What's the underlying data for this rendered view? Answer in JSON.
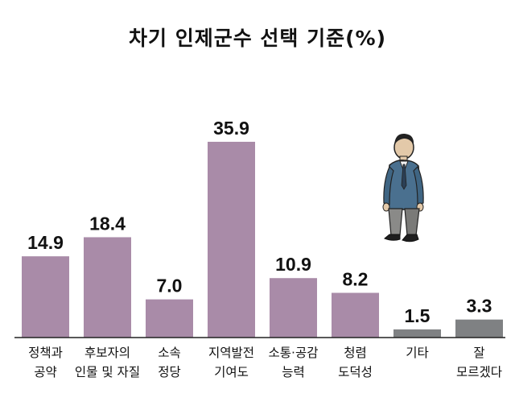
{
  "chart_data": {
    "type": "bar",
    "title": "차기 인제군수 선택 기준(%)",
    "categories": [
      [
        "정책과",
        "공약"
      ],
      [
        "후보자의",
        "인물 및 자질"
      ],
      [
        "소속",
        "정당"
      ],
      [
        "지역발전",
        "기여도"
      ],
      [
        "소통·공감",
        "능력"
      ],
      [
        "청렴",
        "도덕성"
      ],
      [
        "기타"
      ],
      [
        "잘",
        "모르겠다"
      ]
    ],
    "values": [
      14.9,
      18.4,
      7.0,
      35.9,
      10.9,
      8.2,
      1.5,
      3.3
    ],
    "value_labels": [
      "14.9",
      "18.4",
      "7.0",
      "35.9",
      "10.9",
      "8.2",
      "1.5",
      "3.3"
    ],
    "bar_colors": [
      "#a98ba8",
      "#a98ba8",
      "#a98ba8",
      "#a98ba8",
      "#a98ba8",
      "#a98ba8",
      "#7f8183",
      "#7f8183"
    ],
    "xlabel": "",
    "ylabel": "",
    "ylim": [
      0,
      35.9
    ],
    "grid": false,
    "legend": "none"
  }
}
